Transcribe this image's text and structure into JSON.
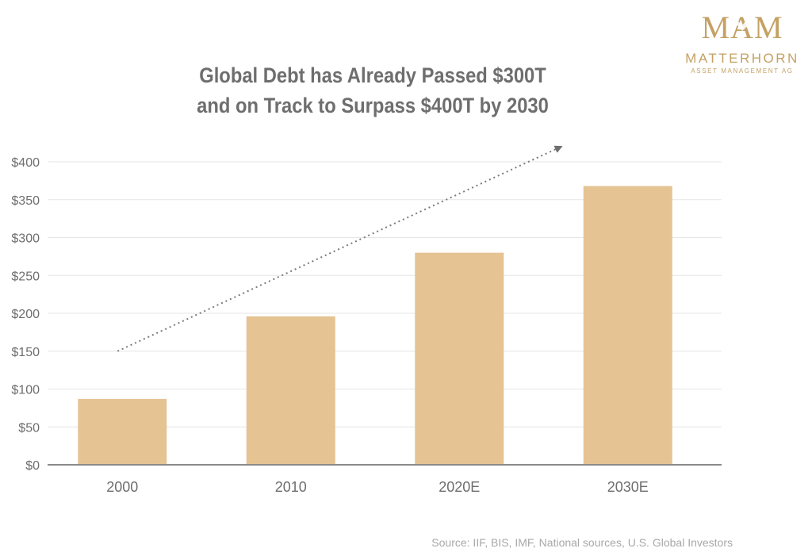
{
  "logo": {
    "mark": "MAM",
    "name": "MATTERHORN",
    "subtitle": "ASSET MANAGEMENT AG",
    "color": "#c4a164"
  },
  "title_lines": [
    "Global Debt has Already Passed $300T",
    "and on Track to Surpass $400T by 2030"
  ],
  "source": "Source: IIF, BIS, IMF, National sources, U.S. Global Investors",
  "chart_data": {
    "type": "bar",
    "title": "Global Debt has Already Passed $300T and on Track to Surpass $400T by 2030",
    "categories": [
      "2000",
      "2010",
      "2020E",
      "2030E"
    ],
    "values": [
      87,
      196,
      280,
      368
    ],
    "units": "trillion USD",
    "ylim": [
      0,
      400
    ],
    "yticks": [
      0,
      50,
      100,
      150,
      200,
      250,
      300,
      350,
      400
    ],
    "ytick_labels": [
      "$0",
      "$50",
      "$100",
      "$150",
      "$200",
      "$250",
      "$300",
      "$350",
      "$400"
    ],
    "xlabel": "",
    "ylabel": "",
    "grid": true,
    "bar_color": "#e5c393",
    "annotations": [
      {
        "type": "trend-arrow",
        "style": "dotted",
        "from_category": "2000",
        "from_value": 150,
        "to_category": "2030E",
        "to_value": 420
      }
    ]
  }
}
